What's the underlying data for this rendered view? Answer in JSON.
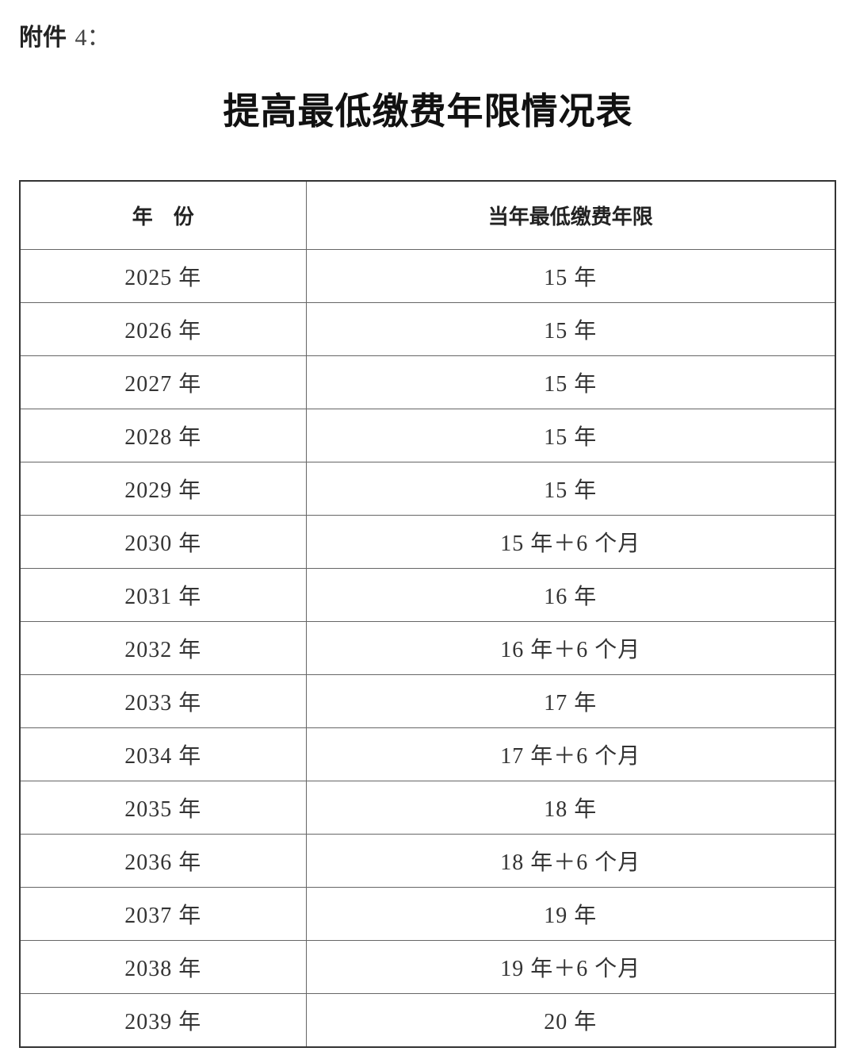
{
  "attachment_label": "附件",
  "attachment_number": "4：",
  "title": "提高最低缴费年限情况表",
  "table": {
    "headers": [
      "年　份",
      "当年最低缴费年限"
    ],
    "rows": [
      [
        "2025 年",
        "15 年"
      ],
      [
        "2026 年",
        "15 年"
      ],
      [
        "2027 年",
        "15 年"
      ],
      [
        "2028 年",
        "15 年"
      ],
      [
        "2029 年",
        "15 年"
      ],
      [
        "2030 年",
        "15 年＋6 个月"
      ],
      [
        "2031 年",
        "16 年"
      ],
      [
        "2032 年",
        "16 年＋6 个月"
      ],
      [
        "2033 年",
        "17 年"
      ],
      [
        "2034 年",
        "17 年＋6 个月"
      ],
      [
        "2035 年",
        "18 年"
      ],
      [
        "2036 年",
        "18 年＋6 个月"
      ],
      [
        "2037 年",
        "19 年"
      ],
      [
        "2038 年",
        "19 年＋6 个月"
      ],
      [
        "2039 年",
        "20 年"
      ]
    ]
  }
}
